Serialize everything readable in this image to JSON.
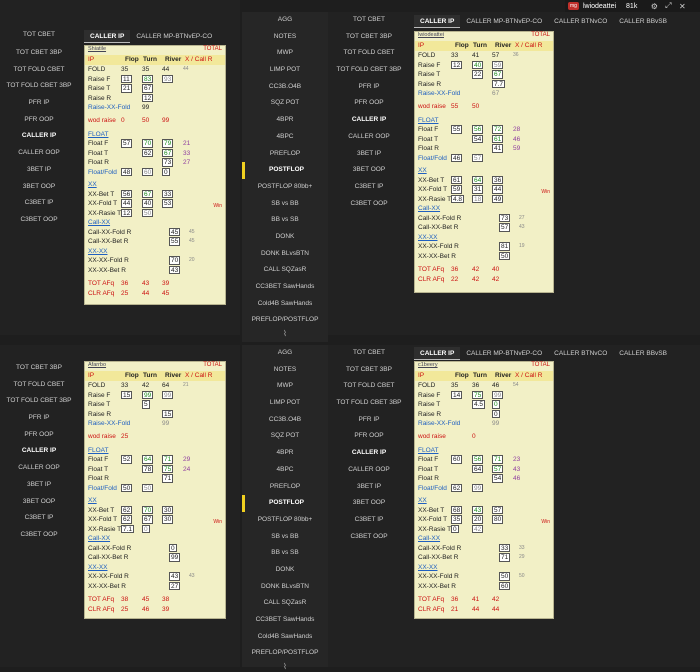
{
  "topbar": {
    "badge": "mg",
    "user": "lwiodeattei",
    "count": "81k",
    "icons": [
      "gear-icon",
      "pin-icon",
      "close-icon"
    ]
  },
  "left_nav": [
    "TOT CBET",
    "TOT CBET 3BP",
    "TOT FOLD CBET",
    "TOT FOLD CBET 3BP",
    "PFR IP",
    "PFR OOP",
    "CALLER IP",
    "CALLER OOP",
    "3BET IP",
    "3BET OOP",
    "C3BET IP",
    "C3BET OOP"
  ],
  "mid_nav": [
    "AGG",
    "NOTES",
    "MWP",
    "LIMP POT",
    "CC3B.O4B",
    "SQZ POT",
    "4BPR",
    "4BPC",
    "PREFLOP",
    "POSTFLOP",
    "POSTFLOP 80bb+",
    "SB vs BB",
    "BB vs SB",
    "DONK",
    "DONK BLvsBTN",
    "CALL SQZasR",
    "CC3BET SawHands",
    "Cold4B SawHands",
    "PREFLOP/POSTFLOP"
  ],
  "tabs_q1": [
    "CALLER IP",
    "CALLER MP-BTNvEP-CO"
  ],
  "tabs_q2": [
    "CALLER IP",
    "CALLER MP-BTNvEP-CO",
    "CALLER BTNvCO",
    "CALLER BBvSB"
  ],
  "tabs_q3": [],
  "tabs_q4": [
    "CALLER IP",
    "CALLER MP-BTNvEP-CO",
    "CALLER BTNvCO",
    "CALLER BBvSB"
  ],
  "cards": [
    {
      "name": "Shiatile",
      "total": "TOTAL",
      "cols": [
        "IP",
        "Flop",
        "Turn",
        "River",
        "X / Call R"
      ],
      "fold": [
        "FOLD",
        "35",
        "35",
        "44",
        "44"
      ],
      "raiseF": [
        "Raise F",
        "11",
        "83",
        "93"
      ],
      "raiseT": [
        "Raise T",
        "21",
        "67"
      ],
      "raiseR": [
        "Raise R",
        "",
        "12",
        ""
      ],
      "rxf": [
        "Raise-XX-Fold",
        "",
        "99",
        ""
      ],
      "wod": [
        "wod raise",
        "0",
        "50",
        "99"
      ],
      "float": "FLOAT",
      "floatF": [
        "Float F",
        "57",
        "70",
        "79",
        "21"
      ],
      "floatT": [
        "Float T",
        "",
        "62",
        "67",
        "33"
      ],
      "floatR": [
        "Float R",
        "",
        "",
        "73",
        "27"
      ],
      "floatFold": [
        "Float/Fold",
        "48",
        "60",
        "0"
      ],
      "xx": "XX",
      "xxBetT": [
        "XX-Bet T",
        "56",
        "67",
        "33"
      ],
      "xxFoldT": [
        "XX-Fold T",
        "44",
        "40",
        "53"
      ],
      "xxRaiseT": [
        "XX-Rasie T",
        "12",
        "50",
        ""
      ],
      "win": "Win",
      "callxx": "Call-XX",
      "cxFoldR": [
        "Call-XX-Fold R",
        "45",
        "45"
      ],
      "cxBetR": [
        "Call-XX-Bet R",
        "55",
        "45"
      ],
      "xxxx": "XX-XX",
      "xxFoldR": [
        "XX-XX-Fold R",
        "70",
        "20"
      ],
      "xxBetR": [
        "XX-XX-Bet R",
        "43",
        ""
      ],
      "afq": [
        "TOT AFq",
        "36",
        "43",
        "39"
      ],
      "clr": [
        "CLR AFq",
        "25",
        "44",
        "45"
      ]
    },
    {
      "name": "lwiodeattei",
      "total": "TOTAL",
      "cols": [
        "IP",
        "Flop",
        "Turn",
        "River",
        "X / Call R"
      ],
      "fold": [
        "FOLD",
        "33",
        "41",
        "57",
        "36"
      ],
      "raiseF": [
        "Raise F",
        "12",
        "40",
        "59"
      ],
      "raiseT": [
        "Raise T",
        "",
        "22",
        "67"
      ],
      "raiseR": [
        "Raise R",
        "",
        "",
        "7.7"
      ],
      "rxf": [
        "Raise-XX-Fold",
        "",
        "",
        "67"
      ],
      "wod": [
        "wod raise",
        "55",
        "50",
        ""
      ],
      "float": "FLOAT",
      "floatF": [
        "Float F",
        "55",
        "56",
        "72",
        "28"
      ],
      "floatT": [
        "Float T",
        "",
        "54",
        "61",
        "46"
      ],
      "floatR": [
        "Float R",
        "",
        "",
        "41",
        "59"
      ],
      "floatFold": [
        "Float/Fold",
        "46",
        "57",
        ""
      ],
      "xx": "XX",
      "xxBetT": [
        "XX-Bet T",
        "61",
        "64",
        "36"
      ],
      "xxFoldT": [
        "XX-Fold T",
        "59",
        "31",
        "44"
      ],
      "xxRaiseT": [
        "XX-Rasie T",
        "4.8",
        "18",
        "49"
      ],
      "win": "Win",
      "callxx": "Call-XX",
      "cxFoldR": [
        "Call-XX-Fold R",
        "73",
        "27"
      ],
      "cxBetR": [
        "Call-XX-Bet R",
        "57",
        "43"
      ],
      "xxxx": "XX-XX",
      "xxFoldR": [
        "XX-XX-Fold R",
        "81",
        "19"
      ],
      "xxBetR": [
        "XX-XX-Bet R",
        "50",
        ""
      ],
      "afq": [
        "TOT AFq",
        "36",
        "42",
        "40"
      ],
      "clr": [
        "CLR AFq",
        "22",
        "42",
        "42"
      ]
    },
    {
      "name": "Afarrbo",
      "total": "TOTAL",
      "cols": [
        "IP",
        "Flop",
        "Turn",
        "River",
        "X / Call R"
      ],
      "fold": [
        "FOLD",
        "33",
        "42",
        "64",
        "21"
      ],
      "raiseF": [
        "Raise F",
        "15",
        "99",
        "99"
      ],
      "raiseT": [
        "Raise T",
        "",
        "5",
        ""
      ],
      "raiseR": [
        "Raise R",
        "",
        "",
        "15"
      ],
      "rxf": [
        "Raise-XX-Fold",
        "",
        "",
        "99"
      ],
      "wod": [
        "wod raise",
        "25",
        "",
        ""
      ],
      "float": "FLOAT",
      "floatF": [
        "Float F",
        "52",
        "64",
        "71",
        "29"
      ],
      "floatT": [
        "Float T",
        "",
        "78",
        "75",
        "24"
      ],
      "floatR": [
        "Float R",
        "",
        "",
        "71",
        ""
      ],
      "floatFold": [
        "Float/Fold",
        "50",
        "50",
        ""
      ],
      "xx": "XX",
      "xxBetT": [
        "XX-Bet T",
        "62",
        "70",
        "30"
      ],
      "xxFoldT": [
        "XX-Fold T",
        "62",
        "67",
        "30"
      ],
      "xxRaiseT": [
        "XX-Rasie T",
        "7.1",
        "0",
        ""
      ],
      "win": "Win",
      "callxx": "Call-XX",
      "cxFoldR": [
        "Call-XX-Fold R",
        "0",
        ""
      ],
      "cxBetR": [
        "Call-XX-Bet R",
        "99",
        ""
      ],
      "xxxx": "XX-XX",
      "xxFoldR": [
        "XX-XX-Fold R",
        "43",
        "43"
      ],
      "xxBetR": [
        "XX-XX-Bet R",
        "27",
        ""
      ],
      "afq": [
        "TOT AFq",
        "38",
        "45",
        "38"
      ],
      "clr": [
        "CLR AFq",
        "25",
        "46",
        "39"
      ]
    },
    {
      "name": "c1beery",
      "total": "TOTAL",
      "cols": [
        "IP",
        "Flop",
        "Turn",
        "River",
        "X / Call R"
      ],
      "fold": [
        "FOLD",
        "35",
        "36",
        "46",
        "54"
      ],
      "raiseF": [
        "Raise F",
        "14",
        "75",
        "99"
      ],
      "raiseT": [
        "Raise T",
        "",
        "4.5",
        "0"
      ],
      "raiseR": [
        "Raise R",
        "",
        "",
        "0"
      ],
      "rxf": [
        "Raise-XX-Fold",
        "",
        "",
        "99"
      ],
      "wod": [
        "wod raise",
        "",
        "0",
        ""
      ],
      "float": "FLOAT",
      "floatF": [
        "Float F",
        "60",
        "56",
        "71",
        "23"
      ],
      "floatT": [
        "Float T",
        "",
        "64",
        "57",
        "43"
      ],
      "floatR": [
        "Float R",
        "",
        "",
        "54",
        "46"
      ],
      "floatFold": [
        "Float/Fold",
        "62",
        "99",
        ""
      ],
      "xx": "XX",
      "xxBetT": [
        "XX-Bet T",
        "68",
        "43",
        "57"
      ],
      "xxFoldT": [
        "XX-Fold T",
        "35",
        "20",
        "80"
      ],
      "xxRaiseT": [
        "XX-Rasie T",
        "0",
        "42",
        ""
      ],
      "win": "Win",
      "callxx": "Call-XX",
      "cxFoldR": [
        "Call-XX-Fold R",
        "33",
        "33"
      ],
      "cxBetR": [
        "Call-XX-Bet R",
        "71",
        "29"
      ],
      "xxxx": "XX-XX",
      "xxFoldR": [
        "XX-XX-Fold R",
        "50",
        "50"
      ],
      "xxBetR": [
        "XX-XX-Bet R",
        "60",
        ""
      ],
      "afq": [
        "TOT AFq",
        "36",
        "41",
        "42"
      ],
      "clr": [
        "CLR AFq",
        "21",
        "44",
        "44"
      ]
    }
  ]
}
